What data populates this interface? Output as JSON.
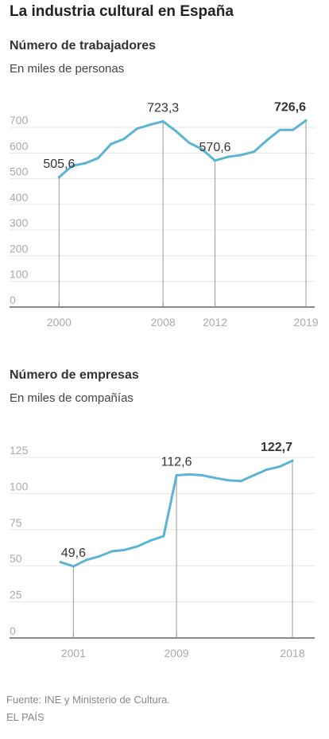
{
  "title": "La industria cultural en España",
  "source": "Fuente: INE y Ministerio de Cultura.",
  "publisher": "EL PAÍS",
  "line_color": "#5bb4d4",
  "chart_data": [
    {
      "type": "line",
      "title": "Número de trabajadores",
      "subtitle": "En miles de personas",
      "x": [
        2000,
        2001,
        2002,
        2003,
        2004,
        2005,
        2006,
        2007,
        2008,
        2009,
        2010,
        2011,
        2012,
        2013,
        2014,
        2015,
        2016,
        2017,
        2018,
        2019
      ],
      "values": [
        505.6,
        550,
        560,
        580,
        635,
        655,
        695,
        710,
        723.3,
        685,
        640,
        615,
        570.6,
        585,
        592,
        605,
        650,
        690,
        690,
        726.6
      ],
      "ylim": [
        0,
        725
      ],
      "yticks": [
        0,
        100,
        200,
        300,
        400,
        500,
        600,
        700
      ],
      "xticks": [
        2000,
        2008,
        2012,
        2019
      ],
      "xlim": [
        1999,
        2019
      ],
      "grid": true,
      "annotations": [
        {
          "x": 2000,
          "text": "505,6",
          "bold": false
        },
        {
          "x": 2008,
          "text": "723,3",
          "bold": false
        },
        {
          "x": 2012,
          "text": "570,6",
          "bold": false
        },
        {
          "x": 2019,
          "text": "726,6",
          "bold": true
        }
      ]
    },
    {
      "type": "line",
      "title": "Número de empresas",
      "subtitle": "En miles de compañías",
      "x": [
        2000,
        2001,
        2002,
        2003,
        2004,
        2005,
        2006,
        2007,
        2008,
        2009,
        2010,
        2011,
        2012,
        2013,
        2014,
        2015,
        2016,
        2017,
        2018
      ],
      "values": [
        52.5,
        49.6,
        54,
        56.5,
        60,
        61,
        63.5,
        67.5,
        70.5,
        112.6,
        113.2,
        112.6,
        110.8,
        109.2,
        108.6,
        112.6,
        116.5,
        118.6,
        122.7
      ],
      "ylim": [
        0,
        125
      ],
      "yticks": [
        0,
        25,
        50,
        75,
        100,
        125
      ],
      "xticks": [
        2001,
        2009,
        2018
      ],
      "xlim": [
        1999,
        2018
      ],
      "grid": true,
      "annotations": [
        {
          "x": 2001,
          "text": "49,6",
          "bold": false
        },
        {
          "x": 2009,
          "text": "112,6",
          "bold": false
        },
        {
          "x": 2018,
          "text": "122,7",
          "bold": true
        }
      ]
    }
  ]
}
